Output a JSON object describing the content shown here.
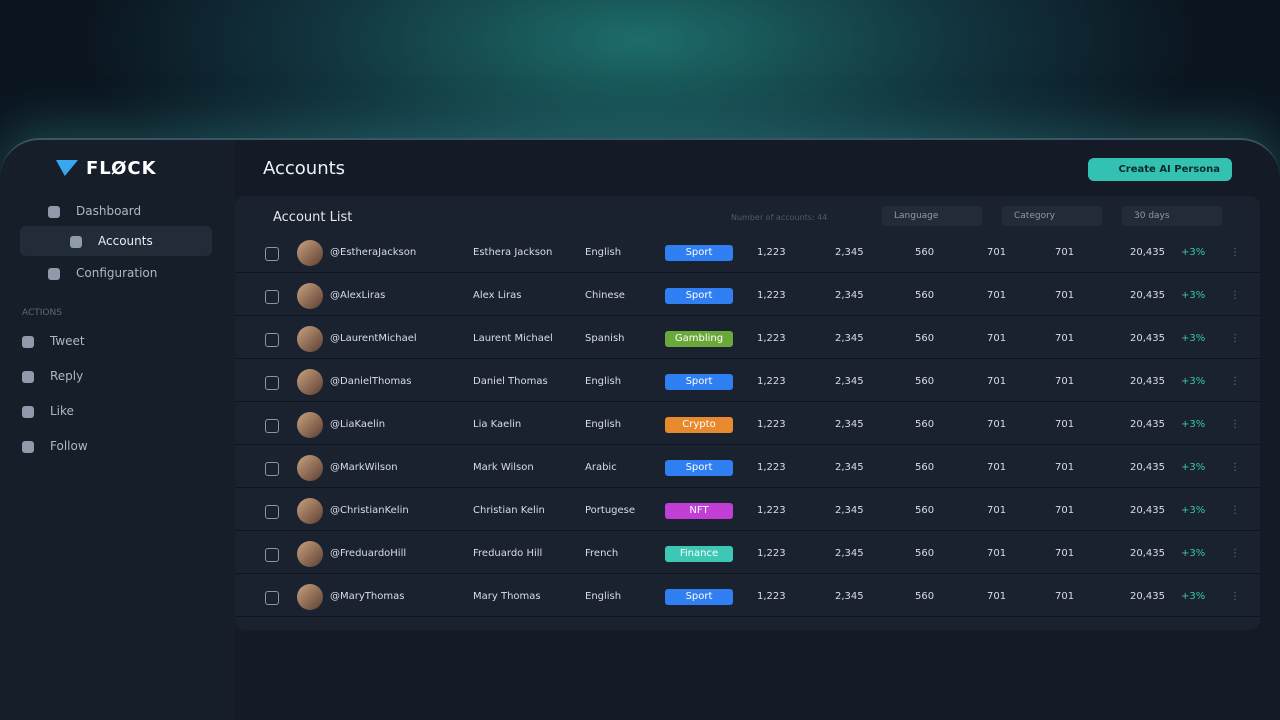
{
  "brand": "FLØCK",
  "nav": [
    "Dashboard",
    "Accounts",
    "Configuration"
  ],
  "actions_label": "ACTIONS",
  "actions": [
    "Tweet",
    "Reply",
    "Like",
    "Follow"
  ],
  "header": {
    "title": "Accounts",
    "button": "Create AI Persona"
  },
  "list": {
    "title": "Account List",
    "count_label": "Number of accounts: 44",
    "filters": [
      "Language",
      "Category",
      "30 days"
    ]
  },
  "category_colors": {
    "Sport": "#2f7ff2",
    "Gambling": "#6aa83a",
    "Crypto": "#e8892e",
    "NFT": "#c23fd6",
    "Finance": "#3cc8b4"
  },
  "rows": [
    [
      "@EstheraJackson",
      "Esthera Jackson",
      "English",
      "Sport",
      "1,223",
      "2,345",
      "560",
      "701",
      "701",
      "20,435",
      "+3%"
    ],
    [
      "@AlexLiras",
      "Alex Liras",
      "Chinese",
      "Sport",
      "1,223",
      "2,345",
      "560",
      "701",
      "701",
      "20,435",
      "+3%"
    ],
    [
      "@LaurentMichael",
      "Laurent Michael",
      "Spanish",
      "Gambling",
      "1,223",
      "2,345",
      "560",
      "701",
      "701",
      "20,435",
      "+3%"
    ],
    [
      "@DanielThomas",
      "Daniel Thomas",
      "English",
      "Sport",
      "1,223",
      "2,345",
      "560",
      "701",
      "701",
      "20,435",
      "+3%"
    ],
    [
      "@LiaKaelin",
      "Lia Kaelin",
      "English",
      "Crypto",
      "1,223",
      "2,345",
      "560",
      "701",
      "701",
      "20,435",
      "+3%"
    ],
    [
      "@MarkWilson",
      "Mark Wilson",
      "Arabic",
      "Sport",
      "1,223",
      "2,345",
      "560",
      "701",
      "701",
      "20,435",
      "+3%"
    ],
    [
      "@ChristianKelin",
      "Christian Kelin",
      "Portugese",
      "NFT",
      "1,223",
      "2,345",
      "560",
      "701",
      "701",
      "20,435",
      "+3%"
    ],
    [
      "@FreduardoHill",
      "Freduardo Hill",
      "French",
      "Finance",
      "1,223",
      "2,345",
      "560",
      "701",
      "701",
      "20,435",
      "+3%"
    ],
    [
      "@MaryThomas",
      "Mary Thomas",
      "English",
      "Sport",
      "1,223",
      "2,345",
      "560",
      "701",
      "701",
      "20,435",
      "+3%"
    ]
  ]
}
